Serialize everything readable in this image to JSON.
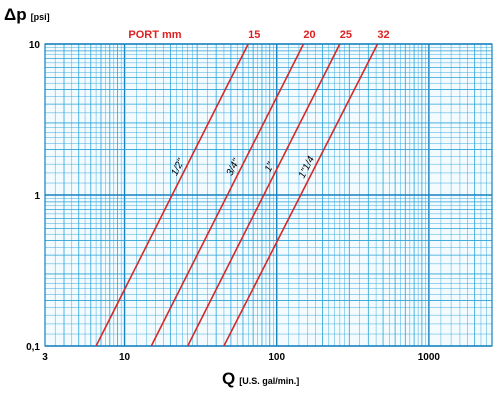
{
  "chart_data": {
    "type": "line",
    "x_scale": "log",
    "y_scale": "log",
    "xlim": [
      3,
      2600
    ],
    "ylim": [
      0.1,
      10
    ],
    "grid": true,
    "x_ticks": [
      {
        "value": 3,
        "label": "3"
      },
      {
        "value": 10,
        "label": "10"
      },
      {
        "value": 100,
        "label": "100"
      },
      {
        "value": 1000,
        "label": "1000"
      }
    ],
    "y_ticks": [
      {
        "value": 0.1,
        "label": "0,1"
      },
      {
        "value": 1,
        "label": "1"
      },
      {
        "value": 10,
        "label": "10"
      }
    ],
    "y_label_symbol": "Δp",
    "y_label_unit": "[psi]",
    "x_label_symbol": "Q",
    "x_label_unit": "[U.S. gal/min.]",
    "port_header": "PORT mm",
    "series": [
      {
        "name": "1/2\"",
        "port": "15",
        "points": [
          [
            6.5,
            0.1
          ],
          [
            65,
            10
          ]
        ]
      },
      {
        "name": "3/4\"",
        "port": "20",
        "points": [
          [
            15,
            0.1
          ],
          [
            150,
            10
          ]
        ]
      },
      {
        "name": "1\"",
        "port": "25",
        "points": [
          [
            26,
            0.1
          ],
          [
            260,
            10
          ]
        ]
      },
      {
        "name": "1\"1/4",
        "port": "32",
        "points": [
          [
            45,
            0.1
          ],
          [
            460,
            10
          ]
        ]
      }
    ],
    "colors": {
      "grid": "#2aa3d8",
      "grid_major": "#1682c0",
      "curve": "#d42a2a",
      "port_text": "#e02020",
      "axis_text": "#000000"
    }
  }
}
